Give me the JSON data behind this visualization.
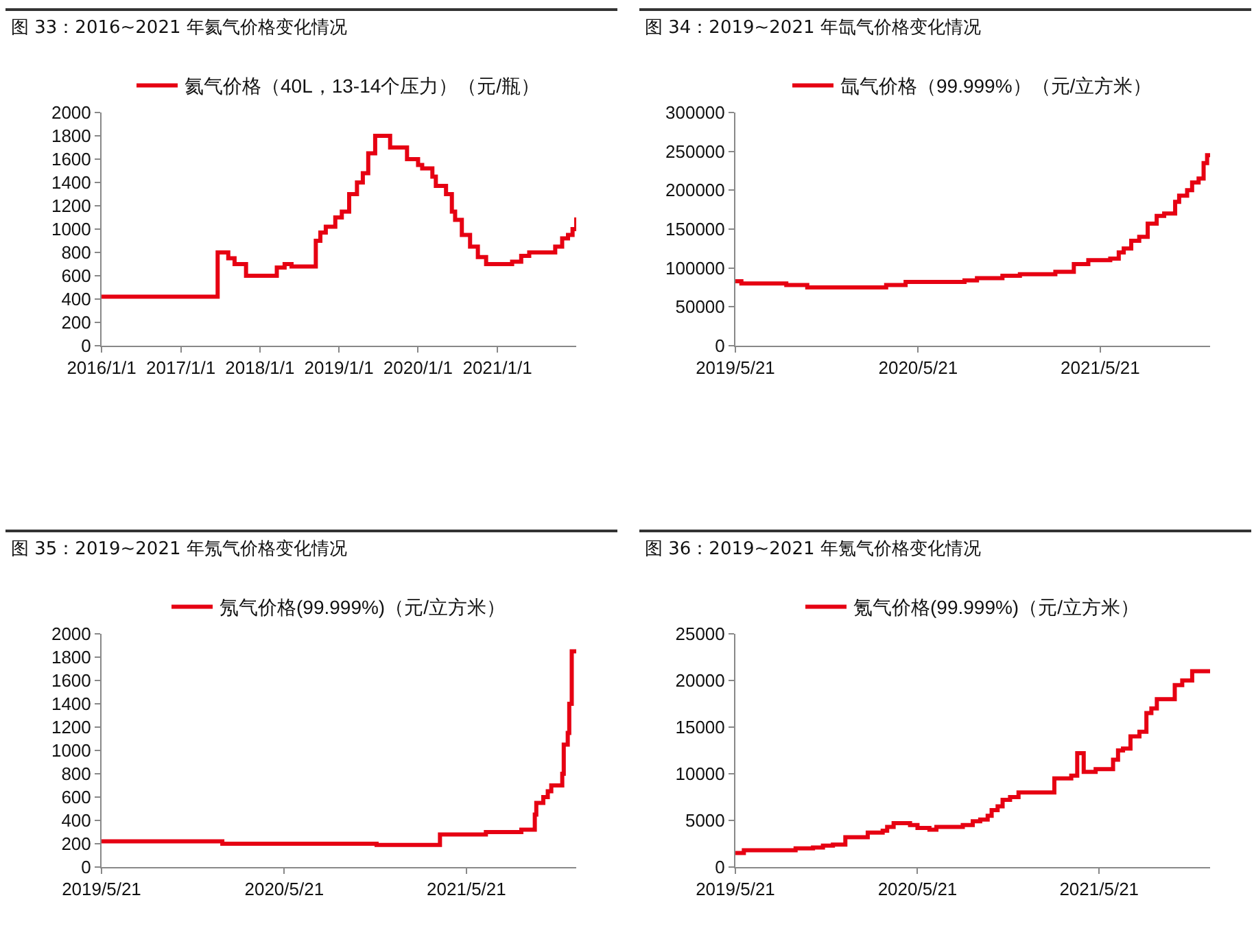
{
  "chart_data": [
    {
      "type": "step",
      "title": "图 33：2016~2021 年氦气价格变化情况",
      "legend": "top",
      "x": [
        "2016-01-01",
        "2017-06-20",
        "2017-08-08",
        "2017-09-06",
        "2017-10-29",
        "2018-03-20",
        "2018-04-25",
        "2018-05-27",
        "2018-09-16",
        "2018-10-07",
        "2018-11-01",
        "2018-12-15",
        "2019-01-14",
        "2019-02-17",
        "2019-03-25",
        "2019-04-21",
        "2019-05-16",
        "2019-06-17",
        "2019-08-25",
        "2019-11-11",
        "2020-01-01",
        "2020-01-20",
        "2020-03-07",
        "2020-03-23",
        "2020-05-09",
        "2020-06-05",
        "2020-06-20",
        "2020-07-21",
        "2020-08-28",
        "2020-10-03",
        "2020-11-10",
        "2021-03-10",
        "2021-04-21",
        "2021-05-28",
        "2021-09-25",
        "2021-10-27",
        "2021-11-23",
        "2021-12-14",
        "2021-12-31"
      ],
      "series": [
        {
          "name": "氦气价格（40L，13-14个压力）（元/瓶）",
          "color": "#e60012",
          "values": [
            420,
            800,
            750,
            700,
            600,
            670,
            700,
            680,
            900,
            970,
            1020,
            1100,
            1150,
            1300,
            1400,
            1480,
            1650,
            1800,
            1700,
            1600,
            1550,
            1520,
            1450,
            1370,
            1300,
            1150,
            1080,
            950,
            850,
            760,
            700,
            720,
            770,
            800,
            850,
            920,
            950,
            1000,
            1100
          ]
        }
      ],
      "xlim": [
        "2016-01-01",
        "2021-12-31"
      ],
      "xticks": [
        {
          "value": "2016-01-01",
          "label": "2016/1/1"
        },
        {
          "value": "2017-01-01",
          "label": "2017/1/1"
        },
        {
          "value": "2018-01-01",
          "label": "2018/1/1"
        },
        {
          "value": "2019-01-01",
          "label": "2019/1/1"
        },
        {
          "value": "2020-01-01",
          "label": "2020/1/1"
        },
        {
          "value": "2021-01-01",
          "label": "2021/1/1"
        }
      ],
      "ylim": [
        0,
        2000
      ],
      "yticks": [
        0,
        200,
        400,
        600,
        800,
        1000,
        1200,
        1400,
        1600,
        1800,
        2000
      ]
    },
    {
      "type": "step",
      "title": "图 34：2019~2021 年氙气价格变化情况",
      "legend": "top",
      "x": [
        "2019-05-21",
        "2019-06-02",
        "2019-08-31",
        "2019-10-12",
        "2020-03-18",
        "2020-04-26",
        "2020-08-22",
        "2020-09-16",
        "2020-11-06",
        "2020-12-11",
        "2021-02-20",
        "2021-03-29",
        "2021-04-27",
        "2021-06-10",
        "2021-06-27",
        "2021-07-07",
        "2021-07-22",
        "2021-08-07",
        "2021-08-24",
        "2021-09-11",
        "2021-09-26",
        "2021-10-18",
        "2021-10-26",
        "2021-11-11",
        "2021-11-21",
        "2021-12-04",
        "2021-12-14",
        "2021-12-21",
        "2021-12-27"
      ],
      "series": [
        {
          "name": "氙气价格（99.999%）（元/立方米）",
          "color": "#e60012",
          "values": [
            83000,
            80000,
            78000,
            75000,
            78000,
            82000,
            84000,
            87000,
            90000,
            92000,
            95000,
            105000,
            110000,
            112000,
            120000,
            125000,
            135000,
            140000,
            157000,
            167000,
            170000,
            185000,
            193000,
            200000,
            210000,
            215000,
            235000,
            245000,
            245000
          ]
        }
      ],
      "xlim": [
        "2019-05-21",
        "2021-12-27"
      ],
      "xticks": [
        {
          "value": "2019-05-21",
          "label": "2019/5/21"
        },
        {
          "value": "2020-05-21",
          "label": "2020/5/21"
        },
        {
          "value": "2021-05-21",
          "label": "2021/5/21"
        }
      ],
      "ylim": [
        0,
        300000
      ],
      "yticks": [
        0,
        50000,
        100000,
        150000,
        200000,
        250000,
        300000
      ]
    },
    {
      "type": "step",
      "title": "图 35：2019~2021 年氖气价格变化情况",
      "legend": "top",
      "x": [
        "2019-05-21",
        "2020-01-18",
        "2020-11-22",
        "2021-03-29",
        "2021-06-29",
        "2021-09-08",
        "2021-10-05",
        "2021-10-08",
        "2021-10-22",
        "2021-10-31",
        "2021-11-07",
        "2021-11-29",
        "2021-12-02",
        "2021-12-10",
        "2021-12-13",
        "2021-12-18",
        "2021-12-27"
      ],
      "series": [
        {
          "name": "氖气价格(99.999%)（元/立方米）",
          "color": "#e60012",
          "values": [
            220,
            200,
            190,
            280,
            300,
            320,
            450,
            550,
            600,
            650,
            700,
            800,
            1050,
            1150,
            1400,
            1850,
            1850
          ]
        }
      ],
      "xlim": [
        "2019-05-21",
        "2021-12-27"
      ],
      "xticks": [
        {
          "value": "2019-05-21",
          "label": "2019/5/21"
        },
        {
          "value": "2020-05-21",
          "label": "2020/5/21"
        },
        {
          "value": "2021-05-21",
          "label": "2021/5/21"
        }
      ],
      "ylim": [
        0,
        2000
      ],
      "yticks": [
        0,
        200,
        400,
        600,
        800,
        1000,
        1200,
        1400,
        1600,
        1800,
        2000
      ]
    },
    {
      "type": "step",
      "title": "图 36：2019~2021 年氪气价格变化情况",
      "legend": "top",
      "x": [
        "2019-05-21",
        "2019-06-07",
        "2019-08-05",
        "2019-09-19",
        "2019-10-24",
        "2019-11-13",
        "2019-12-03",
        "2019-12-28",
        "2020-02-11",
        "2020-03-12",
        "2020-03-21",
        "2020-04-03",
        "2020-05-06",
        "2020-05-21",
        "2020-06-14",
        "2020-06-28",
        "2020-08-20",
        "2020-09-09",
        "2020-09-24",
        "2020-10-09",
        "2020-10-17",
        "2020-10-29",
        "2020-11-08",
        "2020-11-23",
        "2020-12-10",
        "2021-02-20",
        "2021-03-26",
        "2021-04-07",
        "2021-04-20",
        "2021-05-14",
        "2021-06-18",
        "2021-06-28",
        "2021-07-08",
        "2021-07-23",
        "2021-08-10",
        "2021-08-24",
        "2021-09-03",
        "2021-09-14",
        "2021-10-20",
        "2021-11-04",
        "2021-11-24",
        "2021-12-30"
      ],
      "series": [
        {
          "name": "氪气价格(99.999%)（元/立方米）",
          "color": "#e60012",
          "values": [
            1500,
            1800,
            1800,
            2000,
            2100,
            2300,
            2400,
            3200,
            3700,
            3900,
            4300,
            4700,
            4500,
            4200,
            4000,
            4300,
            4500,
            4900,
            5100,
            5500,
            6100,
            6500,
            7200,
            7500,
            8000,
            9500,
            9800,
            12200,
            10200,
            10500,
            11500,
            12500,
            12700,
            14000,
            14500,
            16500,
            17000,
            18000,
            19500,
            20000,
            21000,
            21000
          ]
        }
      ],
      "xlim": [
        "2019-05-21",
        "2021-12-30"
      ],
      "xticks": [
        {
          "value": "2019-05-21",
          "label": "2019/5/21"
        },
        {
          "value": "2020-05-21",
          "label": "2020/5/21"
        },
        {
          "value": "2021-05-21",
          "label": "2021/5/21"
        }
      ],
      "ylim": [
        0,
        25000
      ],
      "yticks": [
        0,
        5000,
        10000,
        15000,
        20000,
        25000
      ]
    }
  ]
}
